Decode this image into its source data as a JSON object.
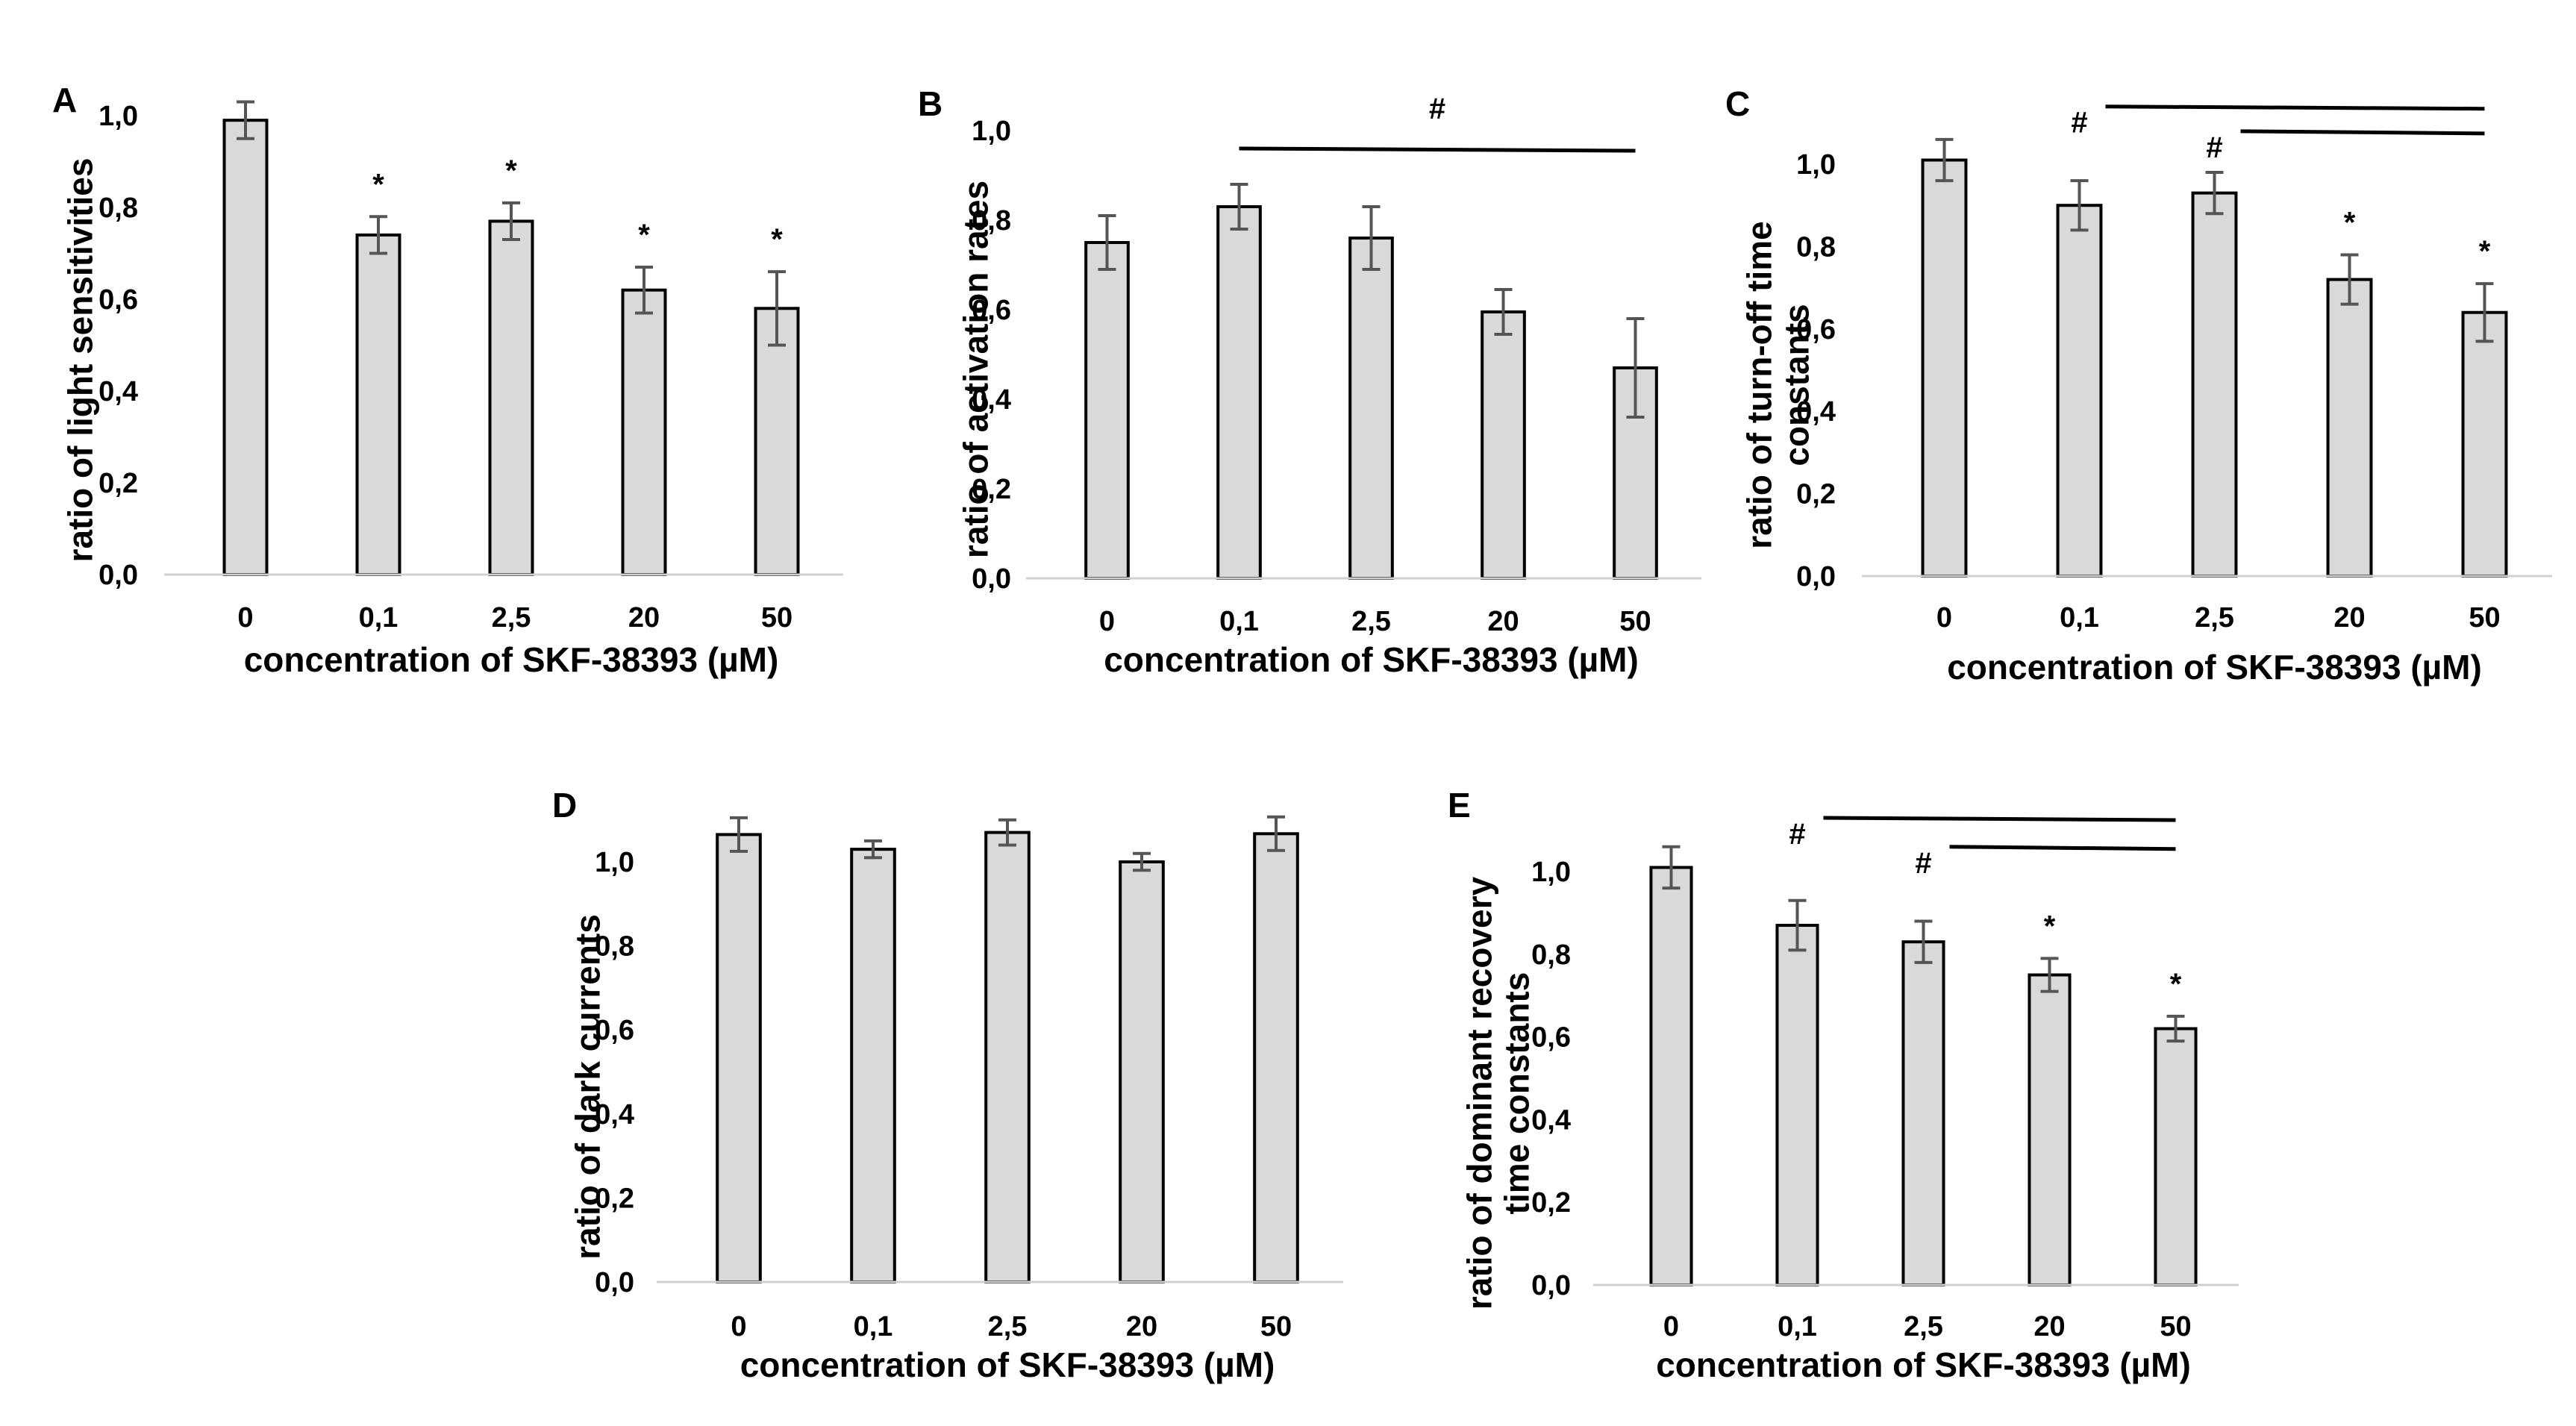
{
  "figure": {
    "x_title": "concentration of SKF-38393 (µM)"
  },
  "chart_data": [
    {
      "id": "A",
      "type": "bar",
      "panel_label": "A",
      "title": "",
      "xlabel": "concentration of SKF-38393 (µM)",
      "ylabel": [
        "ratio of light sensitivities"
      ],
      "categories": [
        "0",
        "0,1",
        "2,5",
        "20",
        "50"
      ],
      "values": [
        0.99,
        0.74,
        0.77,
        0.62,
        0.58
      ],
      "errors": [
        0.04,
        0.04,
        0.04,
        0.05,
        0.08
      ],
      "ylim": [
        0,
        1.0
      ],
      "yticks": [
        "0,0",
        "0,2",
        "0,4",
        "0,6",
        "0,8",
        "1,0"
      ],
      "asterisks": [
        "",
        "*",
        "*",
        "*",
        "*"
      ],
      "brackets": [],
      "grid": false,
      "legend": "none"
    },
    {
      "id": "B",
      "type": "bar",
      "panel_label": "B",
      "title": "",
      "xlabel": "concentration of SKF-38393 (µM)",
      "ylabel": [
        "ratio of activation rates"
      ],
      "categories": [
        "0",
        "0,1",
        "2,5",
        "20",
        "50"
      ],
      "values": [
        0.75,
        0.83,
        0.76,
        0.595,
        0.47
      ],
      "errors": [
        0.06,
        0.05,
        0.07,
        0.05,
        0.11
      ],
      "ylim": [
        0,
        1.0
      ],
      "yticks": [
        "0,0",
        "0,2",
        "0,4",
        "0,6",
        "0,8",
        "1,0"
      ],
      "asterisks": [
        "",
        "",
        "",
        "",
        ""
      ],
      "brackets": [
        {
          "from": 1,
          "to": 4,
          "symbol": "#",
          "level": 0.96,
          "symbol_at": "center"
        }
      ],
      "grid": false,
      "legend": "none"
    },
    {
      "id": "C",
      "type": "bar",
      "panel_label": "C",
      "title": "",
      "xlabel": "concentration of SKF-38393 (µM)",
      "ylabel": [
        "ratio of turn-off time",
        "constants"
      ],
      "categories": [
        "0",
        "0,1",
        "2,5",
        "20",
        "50"
      ],
      "values": [
        1.01,
        0.9,
        0.93,
        0.72,
        0.64
      ],
      "errors": [
        0.05,
        0.06,
        0.05,
        0.06,
        0.07
      ],
      "ylim": [
        0,
        1.0
      ],
      "yticks": [
        "0,0",
        "0,2",
        "0,4",
        "0,6",
        "0,8",
        "1,0"
      ],
      "asterisks": [
        "",
        "",
        "",
        "*",
        "*"
      ],
      "brackets": [
        {
          "from": 1,
          "to": 4,
          "symbol": "#",
          "level": 1.14,
          "symbol_at": "start"
        },
        {
          "from": 2,
          "to": 4,
          "symbol": "#",
          "level": 1.08,
          "symbol_at": "start"
        }
      ],
      "grid": false,
      "legend": "none"
    },
    {
      "id": "D",
      "type": "bar",
      "panel_label": "D",
      "title": "",
      "xlabel": "concentration of SKF-38393 (µM)",
      "ylabel": [
        "ratio of dark currents"
      ],
      "categories": [
        "0",
        "0,1",
        "2,5",
        "20",
        "50"
      ],
      "values": [
        1.065,
        1.03,
        1.07,
        1.0,
        1.067
      ],
      "errors": [
        0.04,
        0.02,
        0.03,
        0.02,
        0.04
      ],
      "ylim": [
        0,
        1.0
      ],
      "yticks": [
        "0,0",
        "0,2",
        "0,4",
        "0,6",
        "0,8",
        "1,0"
      ],
      "asterisks": [
        "",
        "",
        "",
        "",
        ""
      ],
      "brackets": [],
      "grid": false,
      "legend": "none"
    },
    {
      "id": "E",
      "type": "bar",
      "panel_label": "E",
      "title": "",
      "xlabel": "concentration of SKF-38393 (µM)",
      "ylabel": [
        "ratio of dominant recovery",
        "time constants"
      ],
      "categories": [
        "0",
        "0,1",
        "2,5",
        "20",
        "50"
      ],
      "values": [
        1.01,
        0.87,
        0.83,
        0.75,
        0.62
      ],
      "errors": [
        0.05,
        0.06,
        0.05,
        0.04,
        0.03
      ],
      "ylim": [
        0,
        1.0
      ],
      "yticks": [
        "0,0",
        "0,2",
        "0,4",
        "0,6",
        "0,8",
        "1,0"
      ],
      "asterisks": [
        "",
        "",
        "",
        "*",
        "*"
      ],
      "brackets": [
        {
          "from": 1,
          "to": 4,
          "symbol": "#",
          "level": 1.13,
          "symbol_at": "start"
        },
        {
          "from": 2,
          "to": 4,
          "symbol": "#",
          "level": 1.06,
          "symbol_at": "start"
        }
      ],
      "grid": false,
      "legend": "none"
    }
  ]
}
